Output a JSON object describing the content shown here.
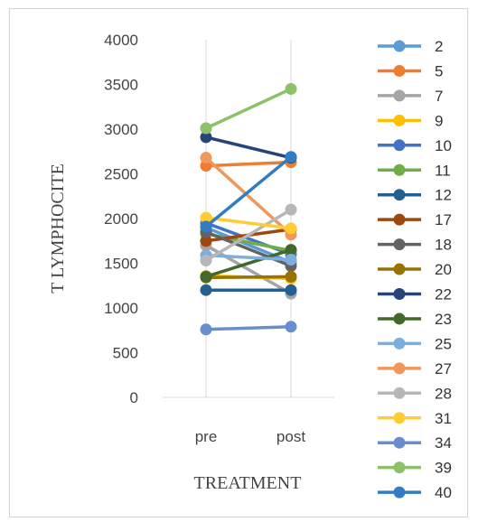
{
  "chart_data": {
    "type": "line",
    "categories": [
      "pre",
      "post"
    ],
    "xlabel": "TREATMENT",
    "ylabel": "T LYMPHOCITE",
    "ylim": [
      0,
      4000
    ],
    "yticks": [
      "0",
      "500",
      "1000",
      "1500",
      "2000",
      "2500",
      "3000",
      "3500",
      "4000"
    ],
    "grid": "vertical category lines only",
    "legend_position": "right",
    "series": [
      {
        "name": "2",
        "color": "#5B9BD5",
        "values": [
          1900,
          1510
        ]
      },
      {
        "name": "5",
        "color": "#ED7D31",
        "values": [
          2590,
          2630
        ]
      },
      {
        "name": "7",
        "color": "#A5A5A5",
        "values": [
          1700,
          1160
        ]
      },
      {
        "name": "9",
        "color": "#FFC000",
        "values": [
          1360,
          1330
        ]
      },
      {
        "name": "10",
        "color": "#4472C4",
        "values": [
          1950,
          1600
        ]
      },
      {
        "name": "11",
        "color": "#70AD47",
        "values": [
          1830,
          1640
        ]
      },
      {
        "name": "12",
        "color": "#255E91",
        "values": [
          1200,
          1200
        ]
      },
      {
        "name": "17",
        "color": "#9E480E",
        "values": [
          1750,
          1880
        ]
      },
      {
        "name": "18",
        "color": "#636363",
        "values": [
          1850,
          1470
        ]
      },
      {
        "name": "20",
        "color": "#997300",
        "values": [
          1340,
          1350
        ]
      },
      {
        "name": "22",
        "color": "#264478",
        "values": [
          2910,
          2680
        ]
      },
      {
        "name": "23",
        "color": "#43682B",
        "values": [
          1350,
          1650
        ]
      },
      {
        "name": "25",
        "color": "#7CAFDD",
        "values": [
          1590,
          1540
        ]
      },
      {
        "name": "27",
        "color": "#F1975A",
        "values": [
          2680,
          1820
        ]
      },
      {
        "name": "28",
        "color": "#B7B7B7",
        "values": [
          1530,
          2100
        ]
      },
      {
        "name": "31",
        "color": "#FFCD33",
        "values": [
          2010,
          1890
        ]
      },
      {
        "name": "34",
        "color": "#698ED0",
        "values": [
          760,
          790
        ]
      },
      {
        "name": "39",
        "color": "#8CC168",
        "values": [
          3010,
          3450
        ]
      },
      {
        "name": "40",
        "color": "#327DC2",
        "values": [
          1910,
          2690
        ]
      }
    ]
  }
}
